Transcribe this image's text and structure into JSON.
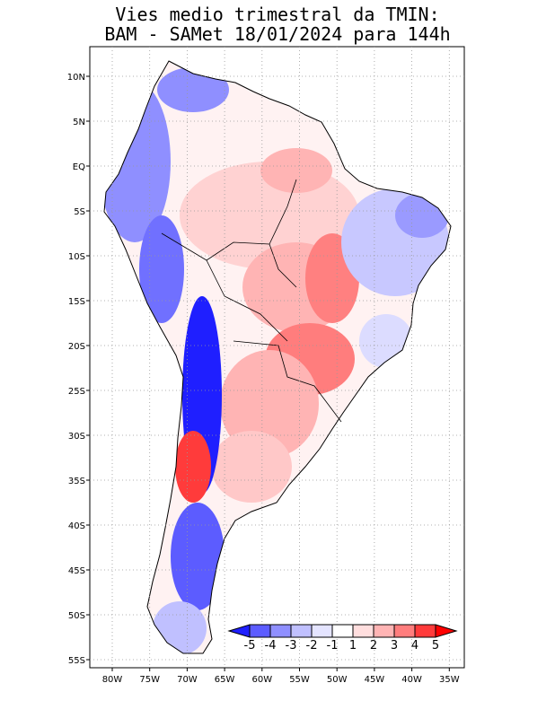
{
  "title_line1": "Vies medio trimestral da TMIN:",
  "title_line2": "BAM - SAMet 18/01/2024  para 144h",
  "lat_labels": [
    "10N",
    "5N",
    "EQ",
    "5S",
    "10S",
    "15S",
    "20S",
    "25S",
    "30S",
    "35S",
    "40S",
    "45S",
    "50S",
    "55S"
  ],
  "lon_labels": [
    "80W",
    "75W",
    "70W",
    "65W",
    "60W",
    "55W",
    "50W",
    "45W",
    "40W",
    "35W"
  ],
  "colorbar": {
    "labels": [
      "-5",
      "-4",
      "-3",
      "-2",
      "-1",
      "1",
      "2",
      "3",
      "4",
      "5"
    ],
    "colors": [
      "#1f1fff",
      "#5c5cff",
      "#8f8fff",
      "#c0c0ff",
      "#e4e4ff",
      "#ffffff",
      "#ffdede",
      "#ffb4b4",
      "#ff7d7d",
      "#ff3b3b",
      "#ff0000"
    ]
  },
  "map": {
    "lon_range": [
      -82.5,
      -34.5
    ],
    "lat_range": [
      -56,
      13
    ],
    "grid": true
  }
}
